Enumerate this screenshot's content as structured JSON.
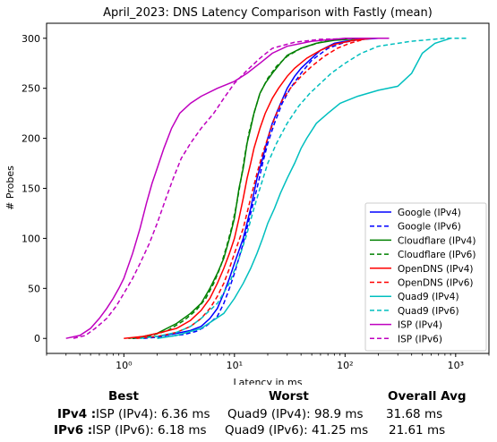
{
  "chart_data": {
    "type": "line",
    "title": "April_2023: DNS Latency Comparison with Fastly (mean)",
    "xlabel": "Latency in ms",
    "ylabel": "# Probes",
    "xscale": "log",
    "xlim": [
      0.2,
      2000
    ],
    "ylim": [
      -15,
      315
    ],
    "xticks": [
      1,
      10,
      100,
      1000
    ],
    "xtick_labels": [
      "10⁰",
      "10¹",
      "10²",
      "10³"
    ],
    "yticks": [
      0,
      50,
      100,
      150,
      200,
      250,
      300
    ],
    "legend_position": "lower right",
    "series": [
      {
        "name": "Google (IPv4)",
        "color": "#0000ff",
        "dash": "solid",
        "points": [
          [
            1.2,
            0
          ],
          [
            2,
            2
          ],
          [
            3,
            5
          ],
          [
            4,
            8
          ],
          [
            5,
            12
          ],
          [
            6,
            20
          ],
          [
            7,
            30
          ],
          [
            8,
            45
          ],
          [
            9,
            60
          ],
          [
            10,
            75
          ],
          [
            12,
            100
          ],
          [
            14,
            130
          ],
          [
            16,
            160
          ],
          [
            18,
            180
          ],
          [
            20,
            200
          ],
          [
            22,
            215
          ],
          [
            25,
            230
          ],
          [
            30,
            250
          ],
          [
            35,
            262
          ],
          [
            40,
            270
          ],
          [
            50,
            280
          ],
          [
            60,
            288
          ],
          [
            80,
            295
          ],
          [
            100,
            297
          ],
          [
            150,
            299
          ],
          [
            200,
            300
          ]
        ]
      },
      {
        "name": "Google (IPv6)",
        "color": "#0000ff",
        "dash": "dashed",
        "points": [
          [
            1.5,
            0
          ],
          [
            2.5,
            2
          ],
          [
            3.5,
            4
          ],
          [
            4.5,
            7
          ],
          [
            5.5,
            12
          ],
          [
            7,
            22
          ],
          [
            8,
            35
          ],
          [
            9,
            50
          ],
          [
            10,
            65
          ],
          [
            12,
            95
          ],
          [
            14,
            125
          ],
          [
            16,
            150
          ],
          [
            18,
            175
          ],
          [
            20,
            195
          ],
          [
            23,
            215
          ],
          [
            27,
            235
          ],
          [
            32,
            250
          ],
          [
            40,
            265
          ],
          [
            50,
            278
          ],
          [
            70,
            290
          ],
          [
            100,
            296
          ],
          [
            150,
            300
          ]
        ]
      },
      {
        "name": "Cloudflare (IPv4)",
        "color": "#008000",
        "dash": "solid",
        "points": [
          [
            1.1,
            0
          ],
          [
            1.5,
            2
          ],
          [
            2,
            5
          ],
          [
            3,
            15
          ],
          [
            4,
            25
          ],
          [
            5,
            35
          ],
          [
            6,
            50
          ],
          [
            7,
            65
          ],
          [
            8,
            80
          ],
          [
            9,
            100
          ],
          [
            10,
            120
          ],
          [
            11,
            150
          ],
          [
            12,
            170
          ],
          [
            13,
            195
          ],
          [
            14,
            210
          ],
          [
            15,
            225
          ],
          [
            17,
            245
          ],
          [
            19,
            255
          ],
          [
            22,
            265
          ],
          [
            26,
            275
          ],
          [
            30,
            283
          ],
          [
            40,
            290
          ],
          [
            55,
            295
          ],
          [
            80,
            298
          ],
          [
            150,
            300
          ]
        ]
      },
      {
        "name": "Cloudflare (IPv6)",
        "color": "#008000",
        "dash": "dashed",
        "points": [
          [
            1.2,
            0
          ],
          [
            1.8,
            3
          ],
          [
            2.5,
            8
          ],
          [
            3.5,
            18
          ],
          [
            4.5,
            28
          ],
          [
            5.5,
            40
          ],
          [
            6.5,
            55
          ],
          [
            7.5,
            72
          ],
          [
            8.5,
            92
          ],
          [
            9.5,
            112
          ],
          [
            10.5,
            135
          ],
          [
            11.5,
            160
          ],
          [
            12.5,
            185
          ],
          [
            13.5,
            205
          ],
          [
            15,
            225
          ],
          [
            17,
            245
          ],
          [
            20,
            260
          ],
          [
            24,
            272
          ],
          [
            30,
            282
          ],
          [
            40,
            290
          ],
          [
            60,
            296
          ],
          [
            100,
            300
          ]
        ]
      },
      {
        "name": "OpenDNS (IPv4)",
        "color": "#ff0000",
        "dash": "solid",
        "points": [
          [
            1,
            0
          ],
          [
            1.5,
            2
          ],
          [
            2,
            5
          ],
          [
            3,
            10
          ],
          [
            4,
            18
          ],
          [
            5,
            28
          ],
          [
            6,
            40
          ],
          [
            7,
            55
          ],
          [
            8,
            70
          ],
          [
            9,
            85
          ],
          [
            10,
            100
          ],
          [
            11,
            120
          ],
          [
            12,
            140
          ],
          [
            13,
            160
          ],
          [
            14,
            175
          ],
          [
            15,
            190
          ],
          [
            17,
            210
          ],
          [
            19,
            225
          ],
          [
            22,
            240
          ],
          [
            25,
            250
          ],
          [
            30,
            262
          ],
          [
            35,
            270
          ],
          [
            45,
            280
          ],
          [
            60,
            288
          ],
          [
            80,
            294
          ],
          [
            120,
            298
          ],
          [
            180,
            300
          ]
        ]
      },
      {
        "name": "OpenDNS (IPv6)",
        "color": "#ff0000",
        "dash": "dashed",
        "points": [
          [
            1.3,
            0
          ],
          [
            2,
            2
          ],
          [
            3,
            6
          ],
          [
            4,
            12
          ],
          [
            5,
            20
          ],
          [
            6,
            30
          ],
          [
            7,
            42
          ],
          [
            8,
            55
          ],
          [
            9,
            70
          ],
          [
            10,
            85
          ],
          [
            12,
            110
          ],
          [
            14,
            140
          ],
          [
            16,
            165
          ],
          [
            18,
            185
          ],
          [
            20,
            200
          ],
          [
            23,
            220
          ],
          [
            27,
            238
          ],
          [
            32,
            250
          ],
          [
            40,
            262
          ],
          [
            50,
            272
          ],
          [
            65,
            282
          ],
          [
            85,
            290
          ],
          [
            110,
            295
          ],
          [
            160,
            300
          ]
        ]
      },
      {
        "name": "Quad9 (IPv4)",
        "color": "#00bfbf",
        "dash": "solid",
        "points": [
          [
            2,
            0
          ],
          [
            3,
            3
          ],
          [
            5,
            10
          ],
          [
            8,
            25
          ],
          [
            10,
            40
          ],
          [
            12,
            55
          ],
          [
            14,
            70
          ],
          [
            16,
            85
          ],
          [
            18,
            100
          ],
          [
            20,
            115
          ],
          [
            23,
            130
          ],
          [
            26,
            145
          ],
          [
            30,
            160
          ],
          [
            35,
            175
          ],
          [
            40,
            190
          ],
          [
            45,
            200
          ],
          [
            55,
            215
          ],
          [
            70,
            225
          ],
          [
            90,
            235
          ],
          [
            130,
            242
          ],
          [
            200,
            248
          ],
          [
            300,
            252
          ],
          [
            400,
            265
          ],
          [
            500,
            285
          ],
          [
            650,
            295
          ],
          [
            900,
            300
          ]
        ]
      },
      {
        "name": "Quad9 (IPv6)",
        "color": "#00bfbf",
        "dash": "dashed",
        "points": [
          [
            1.4,
            0
          ],
          [
            2,
            2
          ],
          [
            3,
            6
          ],
          [
            4,
            12
          ],
          [
            5,
            20
          ],
          [
            7,
            35
          ],
          [
            9,
            55
          ],
          [
            11,
            80
          ],
          [
            13,
            105
          ],
          [
            15,
            130
          ],
          [
            17,
            150
          ],
          [
            20,
            175
          ],
          [
            24,
            195
          ],
          [
            30,
            215
          ],
          [
            38,
            232
          ],
          [
            48,
            245
          ],
          [
            60,
            255
          ],
          [
            75,
            265
          ],
          [
            100,
            275
          ],
          [
            140,
            285
          ],
          [
            200,
            292
          ],
          [
            400,
            297
          ],
          [
            800,
            300
          ],
          [
            1300,
            300
          ]
        ]
      },
      {
        "name": "ISP (IPv4)",
        "color": "#bf00bf",
        "dash": "solid",
        "points": [
          [
            0.3,
            0
          ],
          [
            0.4,
            3
          ],
          [
            0.5,
            10
          ],
          [
            0.6,
            20
          ],
          [
            0.7,
            30
          ],
          [
            0.8,
            40
          ],
          [
            0.9,
            50
          ],
          [
            1,
            60
          ],
          [
            1.2,
            85
          ],
          [
            1.4,
            110
          ],
          [
            1.6,
            135
          ],
          [
            1.8,
            155
          ],
          [
            2,
            170
          ],
          [
            2.3,
            190
          ],
          [
            2.7,
            210
          ],
          [
            3.2,
            225
          ],
          [
            4,
            235
          ],
          [
            5,
            242
          ],
          [
            7,
            250
          ],
          [
            10,
            257
          ],
          [
            13,
            265
          ],
          [
            17,
            275
          ],
          [
            22,
            285
          ],
          [
            30,
            292
          ],
          [
            50,
            297
          ],
          [
            100,
            300
          ],
          [
            250,
            300
          ]
        ]
      },
      {
        "name": "ISP (IPv6)",
        "color": "#bf00bf",
        "dash": "dashed",
        "points": [
          [
            0.35,
            0
          ],
          [
            0.45,
            3
          ],
          [
            0.55,
            10
          ],
          [
            0.7,
            20
          ],
          [
            0.85,
            32
          ],
          [
            1,
            45
          ],
          [
            1.2,
            60
          ],
          [
            1.4,
            75
          ],
          [
            1.7,
            95
          ],
          [
            2,
            115
          ],
          [
            2.4,
            140
          ],
          [
            2.8,
            160
          ],
          [
            3.3,
            180
          ],
          [
            4,
            195
          ],
          [
            5,
            210
          ],
          [
            6.5,
            225
          ],
          [
            8,
            240
          ],
          [
            10,
            255
          ],
          [
            13,
            268
          ],
          [
            17,
            280
          ],
          [
            22,
            290
          ],
          [
            35,
            296
          ],
          [
            60,
            299
          ],
          [
            150,
            300
          ]
        ]
      }
    ]
  },
  "stats": {
    "headers": {
      "best": "Best",
      "worst": "Worst",
      "avg": "Overall Avg"
    },
    "rows": [
      {
        "label": "IPv4 :",
        "best": "ISP (IPv4): 6.36 ms",
        "worst": "Quad9 (IPv4): 98.9 ms",
        "avg": "31.68 ms"
      },
      {
        "label": "IPv6 :",
        "best": "ISP (IPv6): 6.18 ms",
        "worst": "Quad9 (IPv6): 41.25 ms",
        "avg": "21.61 ms"
      }
    ]
  }
}
